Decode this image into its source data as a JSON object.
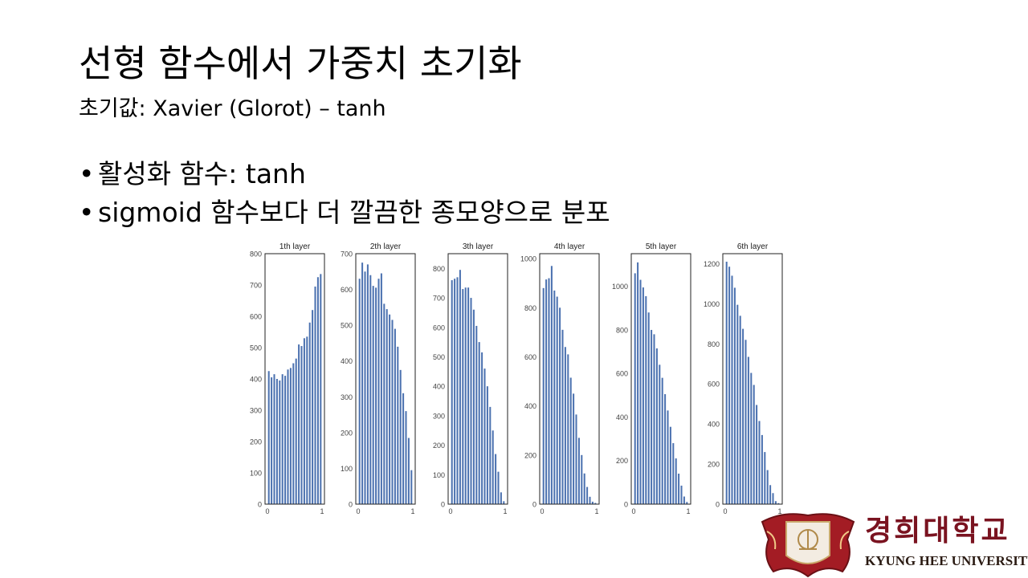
{
  "slide": {
    "title": "선형 함수에서 가중치 초기화",
    "subtitle": "초기값: Xavier (Glorot) – tanh",
    "bullets": [
      "활성화 함수: tanh",
      "sigmoid 함수보다 더 깔끔한 종모양으로 분포"
    ]
  },
  "logo": {
    "korean": "경희대학교",
    "english": "KYUNG HEE UNIVERSITY",
    "color": "#7a1320"
  },
  "chart_data": [
    {
      "type": "bar",
      "title": "1th layer",
      "xlim": [
        0,
        1
      ],
      "ylim": [
        0,
        800
      ],
      "xticks": [
        "0",
        "1"
      ],
      "yticks": [
        0,
        100,
        200,
        300,
        400,
        500,
        600,
        700,
        800
      ],
      "color": "#4c72b0",
      "values": [
        425,
        405,
        415,
        400,
        395,
        415,
        410,
        430,
        435,
        450,
        465,
        510,
        505,
        530,
        535,
        580,
        620,
        695,
        725,
        735
      ]
    },
    {
      "type": "bar",
      "title": "2th layer",
      "xlim": [
        0,
        1
      ],
      "ylim": [
        0,
        700
      ],
      "xticks": [
        "0",
        "1"
      ],
      "yticks": [
        0,
        100,
        200,
        300,
        400,
        500,
        600,
        700
      ],
      "color": "#4c72b0",
      "values": [
        630,
        675,
        650,
        670,
        640,
        610,
        605,
        630,
        645,
        560,
        545,
        530,
        515,
        490,
        440,
        375,
        310,
        260,
        185,
        95
      ]
    },
    {
      "type": "bar",
      "title": "3th layer",
      "xlim": [
        0,
        1
      ],
      "ylim": [
        0,
        850
      ],
      "xticks": [
        "0",
        "1"
      ],
      "yticks": [
        0,
        100,
        200,
        300,
        400,
        500,
        600,
        700,
        800
      ],
      "color": "#4c72b0",
      "values": [
        760,
        765,
        770,
        795,
        730,
        735,
        735,
        700,
        660,
        605,
        550,
        515,
        460,
        400,
        330,
        250,
        170,
        110,
        40,
        10
      ]
    },
    {
      "type": "bar",
      "title": "4th layer",
      "xlim": [
        0,
        1
      ],
      "ylim": [
        0,
        1020
      ],
      "xticks": [
        "0",
        "1"
      ],
      "yticks": [
        0,
        200,
        400,
        600,
        800,
        1000
      ],
      "color": "#4c72b0",
      "values": [
        880,
        915,
        920,
        970,
        870,
        845,
        800,
        710,
        640,
        610,
        515,
        450,
        365,
        270,
        200,
        125,
        70,
        30,
        10,
        5
      ]
    },
    {
      "type": "bar",
      "title": "5th layer",
      "xlim": [
        0,
        1
      ],
      "ylim": [
        0,
        1150
      ],
      "xticks": [
        "0",
        "1"
      ],
      "yticks": [
        0,
        200,
        400,
        600,
        800,
        1000
      ],
      "color": "#4c72b0",
      "values": [
        1060,
        1110,
        1030,
        995,
        955,
        880,
        800,
        780,
        715,
        640,
        580,
        505,
        430,
        355,
        280,
        210,
        140,
        85,
        35,
        10
      ]
    },
    {
      "type": "bar",
      "title": "6th layer",
      "xlim": [
        0,
        1
      ],
      "ylim": [
        0,
        1250
      ],
      "xticks": [
        "0",
        "1"
      ],
      "yticks": [
        0,
        200,
        400,
        600,
        800,
        1000,
        1200
      ],
      "color": "#4c72b0",
      "values": [
        1210,
        1185,
        1140,
        1080,
        995,
        940,
        875,
        820,
        735,
        655,
        595,
        495,
        415,
        345,
        260,
        170,
        95,
        55,
        15,
        5
      ]
    }
  ]
}
